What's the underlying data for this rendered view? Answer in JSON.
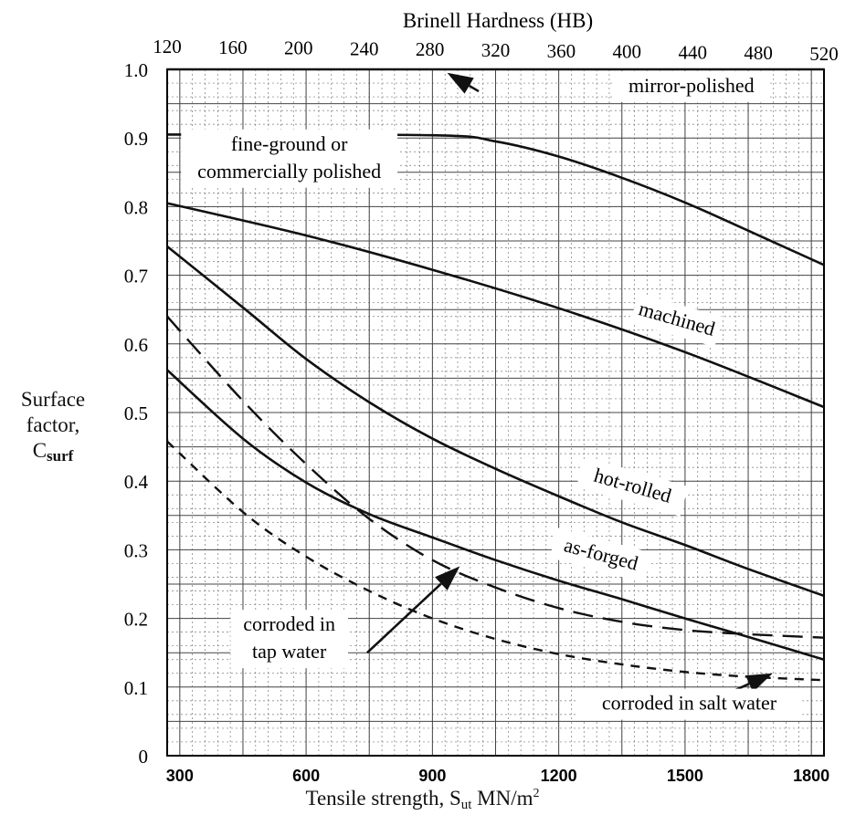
{
  "chart_data": {
    "type": "line",
    "top_axis_title": "Brinell Hardness (HB)",
    "top_ticks": [
      120,
      160,
      200,
      240,
      280,
      320,
      360,
      400,
      440,
      480,
      520
    ],
    "x_ticks": [
      300,
      600,
      900,
      1200,
      1500,
      1800
    ],
    "y_ticks": [
      "0",
      "0.1",
      "0.2",
      "0.3",
      "0.4",
      "0.5",
      "0.6",
      "0.7",
      "0.8",
      "0.9",
      "1.0"
    ],
    "xlim": [
      270,
      1830
    ],
    "ylim": [
      0,
      1.0
    ],
    "grid": true,
    "ylabel_lines": [
      "Surface",
      "factor,"
    ],
    "ylabel_symbol": "C",
    "ylabel_subscript": "surf",
    "xlabel_main": "Tensile strength, S",
    "xlabel_subscript": "ut",
    "xlabel_unit": " MN/m",
    "xlabel_superscript": "2",
    "series": [
      {
        "name": "mirror-polished",
        "dash": "solid",
        "x": [
          270,
          1830
        ],
        "y": [
          1.0,
          1.0
        ]
      },
      {
        "name": "fine-ground or commercially polished",
        "dash": "solid",
        "x": [
          270,
          900,
          1050,
          1200,
          1350,
          1500,
          1650,
          1830
        ],
        "y": [
          0.905,
          0.904,
          0.895,
          0.873,
          0.842,
          0.806,
          0.765,
          0.715
        ]
      },
      {
        "name": "machined",
        "dash": "solid",
        "x": [
          270,
          600,
          900,
          1200,
          1500,
          1830
        ],
        "y": [
          0.805,
          0.758,
          0.708,
          0.652,
          0.588,
          0.508
        ]
      },
      {
        "name": "hot-rolled",
        "dash": "solid",
        "x": [
          270,
          450,
          600,
          750,
          900,
          1050,
          1200,
          1350,
          1500,
          1650,
          1830
        ],
        "y": [
          0.742,
          0.653,
          0.578,
          0.515,
          0.462,
          0.418,
          0.378,
          0.34,
          0.307,
          0.272,
          0.233
        ]
      },
      {
        "name": "as-forged",
        "dash": "solid",
        "x": [
          270,
          450,
          600,
          750,
          900,
          1050,
          1200,
          1350,
          1500,
          1650,
          1830
        ],
        "y": [
          0.562,
          0.462,
          0.398,
          0.352,
          0.318,
          0.285,
          0.255,
          0.228,
          0.2,
          0.173,
          0.14
        ]
      },
      {
        "name": "corroded in tap water",
        "dash": "long",
        "x": [
          270,
          450,
          600,
          750,
          900,
          1050,
          1200,
          1350,
          1500,
          1650,
          1830
        ],
        "y": [
          0.64,
          0.517,
          0.425,
          0.345,
          0.285,
          0.245,
          0.215,
          0.195,
          0.183,
          0.177,
          0.172
        ]
      },
      {
        "name": "corroded in salt water",
        "dash": "short",
        "x": [
          270,
          450,
          600,
          750,
          900,
          1050,
          1200,
          1350,
          1500,
          1650,
          1830
        ],
        "y": [
          0.458,
          0.355,
          0.29,
          0.24,
          0.2,
          0.17,
          0.148,
          0.133,
          0.122,
          0.115,
          0.11
        ]
      }
    ],
    "annotations": [
      {
        "text": "mirror-polished",
        "x": 1515,
        "y": 0.975,
        "rotate": 0
      },
      {
        "lines": [
          "fine-ground or",
          "commercially polished"
        ],
        "x": 560,
        "y": 0.87,
        "rotate": 0
      },
      {
        "text": "machined",
        "x": 1480,
        "y": 0.635,
        "rotate": 16
      },
      {
        "text": "hot-rolled",
        "x": 1375,
        "y": 0.392,
        "rotate": 16
      },
      {
        "text": "as-forged",
        "x": 1300,
        "y": 0.292,
        "rotate": 15
      },
      {
        "lines": [
          "corroded in",
          "tap water"
        ],
        "x": 560,
        "y": 0.17,
        "rotate": 0
      },
      {
        "text": "corroded in salt water",
        "x": 1510,
        "y": 0.075,
        "rotate": 0
      }
    ],
    "arrows": [
      {
        "x1": 1010,
        "y1": 0.968,
        "x2": 935,
        "y2": 0.995
      },
      {
        "x1": 530,
        "y1": 0.855,
        "x2": 352,
        "y2": 0.895
      },
      {
        "x1": 745,
        "y1": 0.15,
        "x2": 965,
        "y2": 0.276
      },
      {
        "x1": 1555,
        "y1": 0.078,
        "x2": 1708,
        "y2": 0.12
      }
    ]
  }
}
